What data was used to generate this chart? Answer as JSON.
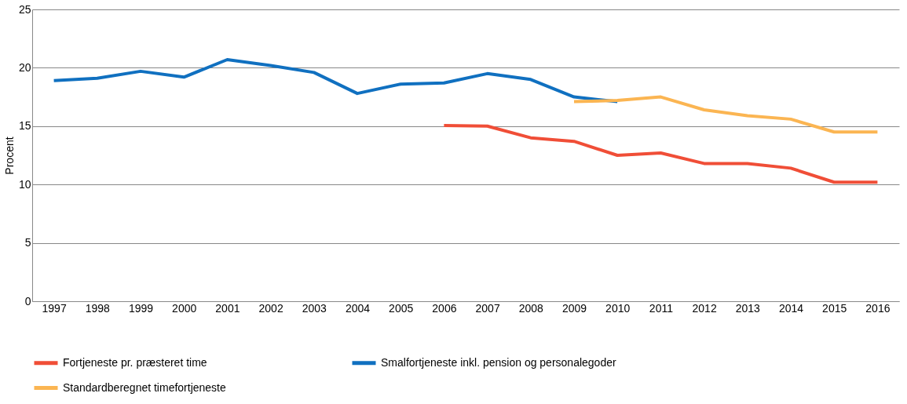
{
  "chart_data": {
    "type": "line",
    "ylabel": "Procent",
    "categories": [
      "1997",
      "1998",
      "1999",
      "2000",
      "2001",
      "2002",
      "2003",
      "2004",
      "2005",
      "2006",
      "2007",
      "2008",
      "2009",
      "2010",
      "2011",
      "2012",
      "2013",
      "2014",
      "2015",
      "2016"
    ],
    "series": [
      {
        "name": "Fortjeneste pr. præsteret time",
        "color": "#f04e37",
        "values": [
          null,
          null,
          null,
          null,
          null,
          null,
          null,
          null,
          null,
          15.05,
          15.0,
          14.0,
          13.7,
          12.5,
          12.7,
          11.8,
          11.8,
          11.4,
          10.2,
          10.2
        ]
      },
      {
        "name": "Smalfortjeneste inkl. pension og personalegoder",
        "color": "#1070c0",
        "values": [
          18.9,
          19.1,
          19.7,
          19.2,
          20.7,
          20.2,
          19.6,
          17.8,
          18.6,
          18.7,
          19.5,
          19.0,
          17.5,
          17.1,
          null,
          null,
          null,
          null,
          null,
          null
        ]
      },
      {
        "name": "Standardberegnet timefortjeneste",
        "color": "#fbb552",
        "values": [
          null,
          null,
          null,
          null,
          null,
          null,
          null,
          null,
          null,
          null,
          null,
          null,
          17.1,
          17.2,
          17.5,
          16.4,
          15.9,
          15.6,
          14.5,
          14.5
        ]
      }
    ],
    "ylim": [
      0,
      25
    ],
    "yticks": [
      0,
      5,
      10,
      15,
      20,
      25
    ],
    "grid": "y",
    "legend": "bottom",
    "marker": "none",
    "line_style": "solid"
  }
}
